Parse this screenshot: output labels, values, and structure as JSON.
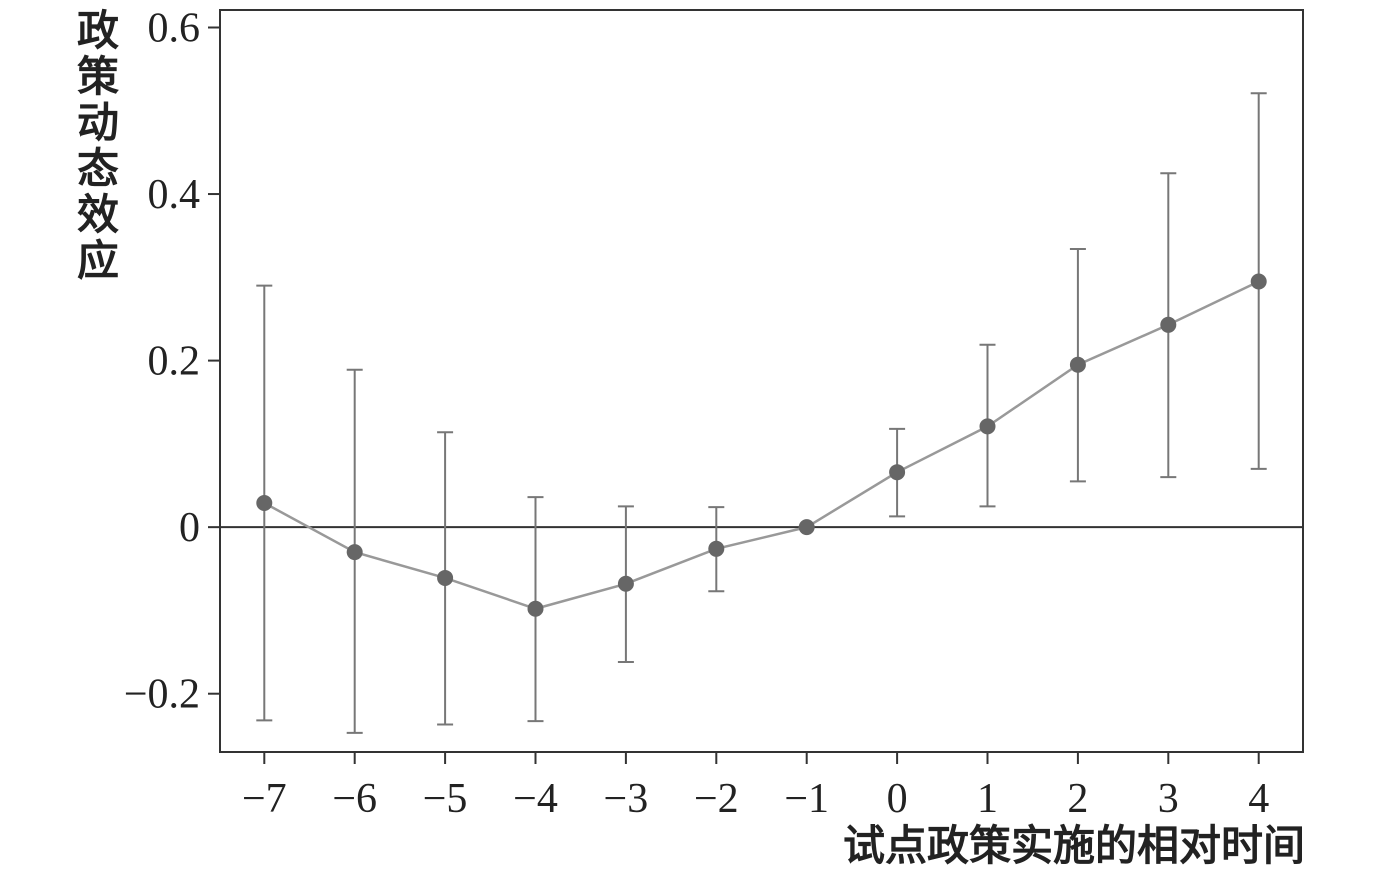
{
  "chart_data": {
    "type": "line",
    "y_label": "政策动态效应",
    "x_label": "试点政策实施的相对时间",
    "x": [
      -7,
      -6,
      -5,
      -4,
      -3,
      -2,
      -1,
      0,
      1,
      2,
      3,
      4
    ],
    "values": [
      0.029,
      -0.03,
      -0.061,
      -0.098,
      -0.068,
      -0.026,
      0,
      0.066,
      0.121,
      0.195,
      0.243,
      0.295
    ],
    "lower": [
      -0.232,
      -0.247,
      -0.237,
      -0.233,
      -0.162,
      -0.077,
      null,
      0.013,
      0.025,
      0.055,
      0.06,
      0.07
    ],
    "upper": [
      0.29,
      0.189,
      0.114,
      0.036,
      0.025,
      0.024,
      null,
      0.118,
      0.219,
      0.334,
      0.425,
      0.521
    ],
    "color": "#999999",
    "marker_color": "#666666",
    "error_color": "#777777",
    "hline": 0,
    "xlim": [
      -7.49,
      4.49
    ],
    "ylim": [
      -0.27,
      0.621
    ],
    "xticks": [
      {
        "value": -7,
        "label": "−7"
      },
      {
        "value": -6,
        "label": "−6"
      },
      {
        "value": -5,
        "label": "−5"
      },
      {
        "value": -4,
        "label": "−4"
      },
      {
        "value": -3,
        "label": "−3"
      },
      {
        "value": -2,
        "label": "−2"
      },
      {
        "value": -1,
        "label": "−1"
      },
      0,
      1,
      2,
      3,
      4
    ],
    "yticks": [
      {
        "value": -0.2,
        "label": "−0.2"
      },
      0,
      0.2,
      0.4,
      0.6
    ]
  }
}
